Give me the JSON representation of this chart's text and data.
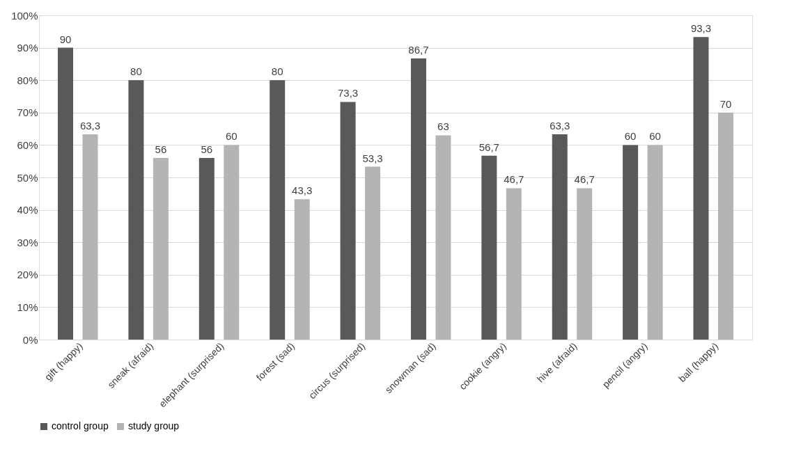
{
  "chart_data": {
    "type": "bar",
    "categories": [
      "gift (happy)",
      "sneak (afraid)",
      "elephant (surprised)",
      "forest (sad)",
      "circus (surprised)",
      "snowman (sad)",
      "cookie (angry)",
      "hive (afraid)",
      "pencil (angry)",
      "ball (happy)"
    ],
    "series": [
      {
        "name": "control group",
        "color": "#595959",
        "values": [
          90,
          80,
          56,
          80,
          73.3,
          86.7,
          56.7,
          63.3,
          60,
          93.3
        ],
        "value_labels": [
          "90",
          "80",
          "56",
          "80",
          "73,3",
          "86,7",
          "56,7",
          "63,3",
          "60",
          "93,3"
        ]
      },
      {
        "name": "study group",
        "color": "#b4b4b4",
        "values": [
          63.3,
          56,
          60,
          43.3,
          53.3,
          63,
          46.7,
          46.7,
          60,
          70
        ],
        "value_labels": [
          "63,3",
          "56",
          "60",
          "43,3",
          "53,3",
          "63",
          "46,7",
          "46,7",
          "60",
          "70"
        ]
      }
    ],
    "ylim": [
      0,
      100
    ],
    "yticks": [
      {
        "value": 0,
        "label": "0%"
      },
      {
        "value": 10,
        "label": "10%"
      },
      {
        "value": 20,
        "label": "20%"
      },
      {
        "value": 30,
        "label": "30%"
      },
      {
        "value": 40,
        "label": "40%"
      },
      {
        "value": 50,
        "label": "50%"
      },
      {
        "value": 60,
        "label": "60%"
      },
      {
        "value": 70,
        "label": "70%"
      },
      {
        "value": 80,
        "label": "80%"
      },
      {
        "value": 90,
        "label": "90%"
      },
      {
        "value": 100,
        "label": "100%"
      }
    ],
    "grid": "y",
    "legend": "bottom"
  }
}
